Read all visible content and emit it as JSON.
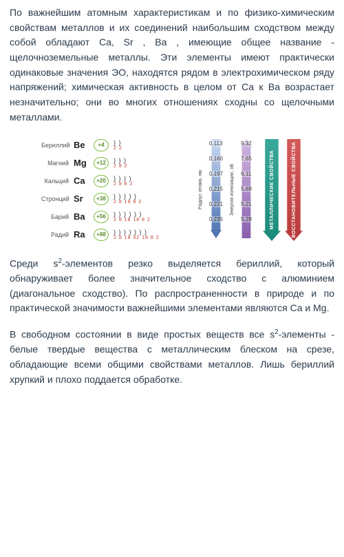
{
  "para1": "По важнейшим атомным характеристикам и по физико-химическим свойствам металлов и их соединений наибольшим сходством между собой обладают Ca, Sr , Ba , имеющие общее название - щелочноземельные металлы. Эти элементы имеют практически одинаковые значения ЭО, находятся рядом в электрохимическом ряду напряжений; химическая активность в целом от Ca к Ba возрастает незначительно; они во многих отношениях сходны со щелочными металлами.",
  "para2_a": "Среди s",
  "para2_sup": "2",
  "para2_b": "-элементов резко выделяется бериллий, который обнаруживает более значительное сходство с алюминием (диагональное сходство). По распространенности в природе и по практической значимости важнейшими элементами являются Ca и Mg.",
  "para3_a": "В свободном состоянии в виде простых веществ все s",
  "para3_sup": "2",
  "para3_b": "-элементы - белые твердые вещества с металлическим блеском на срезе, обладающие всеми общими свойствами металлов. Лишь бериллий хрупкий и плохо поддается обработке.",
  "elements": [
    {
      "name": "Бериллий",
      "sym": "Be",
      "charge": "+4",
      "border": "#7fbf3f",
      "txt": "#5a8c2a",
      "shells": ")  )",
      "shellnums": "2 2"
    },
    {
      "name": "Магний",
      "sym": "Mg",
      "charge": "+12",
      "border": "#7fbf3f",
      "txt": "#5a8c2a",
      "shells": ")  )  )",
      "shellnums": "2 8 2"
    },
    {
      "name": "Кальций",
      "sym": "Ca",
      "charge": "+20",
      "border": "#7fbf3f",
      "txt": "#5a8c2a",
      "shells": ")  )  )  )",
      "shellnums": "2 8 8 2"
    },
    {
      "name": "Стронций",
      "sym": "Sr",
      "charge": "+38",
      "border": "#7fbf3f",
      "txt": "#5a8c2a",
      "shells": ")  )  )  )  )",
      "shellnums": "2 8 18 8 2"
    },
    {
      "name": "Барий",
      "sym": "Ba",
      "charge": "+56",
      "border": "#7fbf3f",
      "txt": "#5a8c2a",
      "shells": ")  )  )  )  )  )",
      "shellnums": "2 8 18 18 8 2"
    },
    {
      "name": "Радий",
      "sym": "Ra",
      "charge": "+88",
      "border": "#7fbf3f",
      "txt": "#5a8c2a",
      "shells": ")  )  )  )  )  )  )",
      "shellnums": "2 8 18 32 18 8 2"
    }
  ],
  "radius_values": [
    "0,113",
    "0,160",
    "0,197",
    "0,215",
    "0,221",
    "0,235"
  ],
  "radius_label": "Радиус атома, нм",
  "radius_grad_top": "#c9d9f0",
  "radius_grad_bot": "#4a6fb0",
  "ion_values": [
    "9,32",
    "7,65",
    "6,11",
    "5,69",
    "5,21",
    "5,28"
  ],
  "ion_label": "Энергия ионизации, эВ",
  "ion_grad_top": "#d0b8e0",
  "ion_grad_bot": "#8a5fae",
  "arrow1_label": "МЕТАЛЛИЧЕСКИЕ СВОЙСТВА",
  "arrow1_color_top": "#3aa89a",
  "arrow1_color_bot": "#1a8a7a",
  "arrow2_label": "ВОССТАНОВИТЕЛЬНЫЕ СВОЙСТВА",
  "arrow2_color_top": "#d45a5a",
  "arrow2_color_bot": "#b83a3a"
}
